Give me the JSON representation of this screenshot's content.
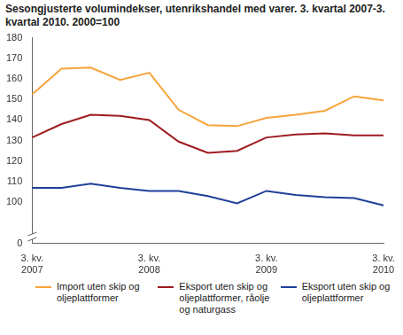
{
  "chart_data": {
    "type": "line",
    "title": "Sesongjusterte volumindekser, utenrikshandel med varer. 3. kvartal 2007-3. kvartal 2010. 2000=100",
    "categories": [
      "3. kv. 2007",
      null,
      null,
      null,
      "3. kv. 2008",
      null,
      null,
      null,
      "3. kv. 2009",
      null,
      null,
      null,
      "3. kv. 2010"
    ],
    "series": [
      {
        "name": "Import uten skip og oljeplattformer",
        "color": "#f5a43a",
        "values": [
          152.5,
          165,
          165.5,
          159.5,
          163,
          145,
          137.5,
          137,
          141,
          142.5,
          144.5,
          151.5,
          149.5
        ]
      },
      {
        "name": "Eksport uten skip og oljeplattformer, råolje og naturgass",
        "color": "#9e1b1f",
        "values": [
          131.5,
          138,
          142.5,
          142,
          140,
          129.5,
          124,
          125,
          131.5,
          133,
          133.5,
          132.5,
          132.5
        ]
      },
      {
        "name": "Eksport uten skip og oljeplattformer",
        "color": "#1f3f99",
        "values": [
          107,
          107,
          109,
          107,
          105.5,
          105.5,
          103,
          99.5,
          105.5,
          103.5,
          102.5,
          102,
          98.5
        ]
      }
    ],
    "ylim": [
      0,
      180
    ],
    "yticks": [
      0,
      100,
      110,
      120,
      130,
      140,
      150,
      160,
      170,
      180
    ],
    "grid": false,
    "legend": "bottom"
  }
}
